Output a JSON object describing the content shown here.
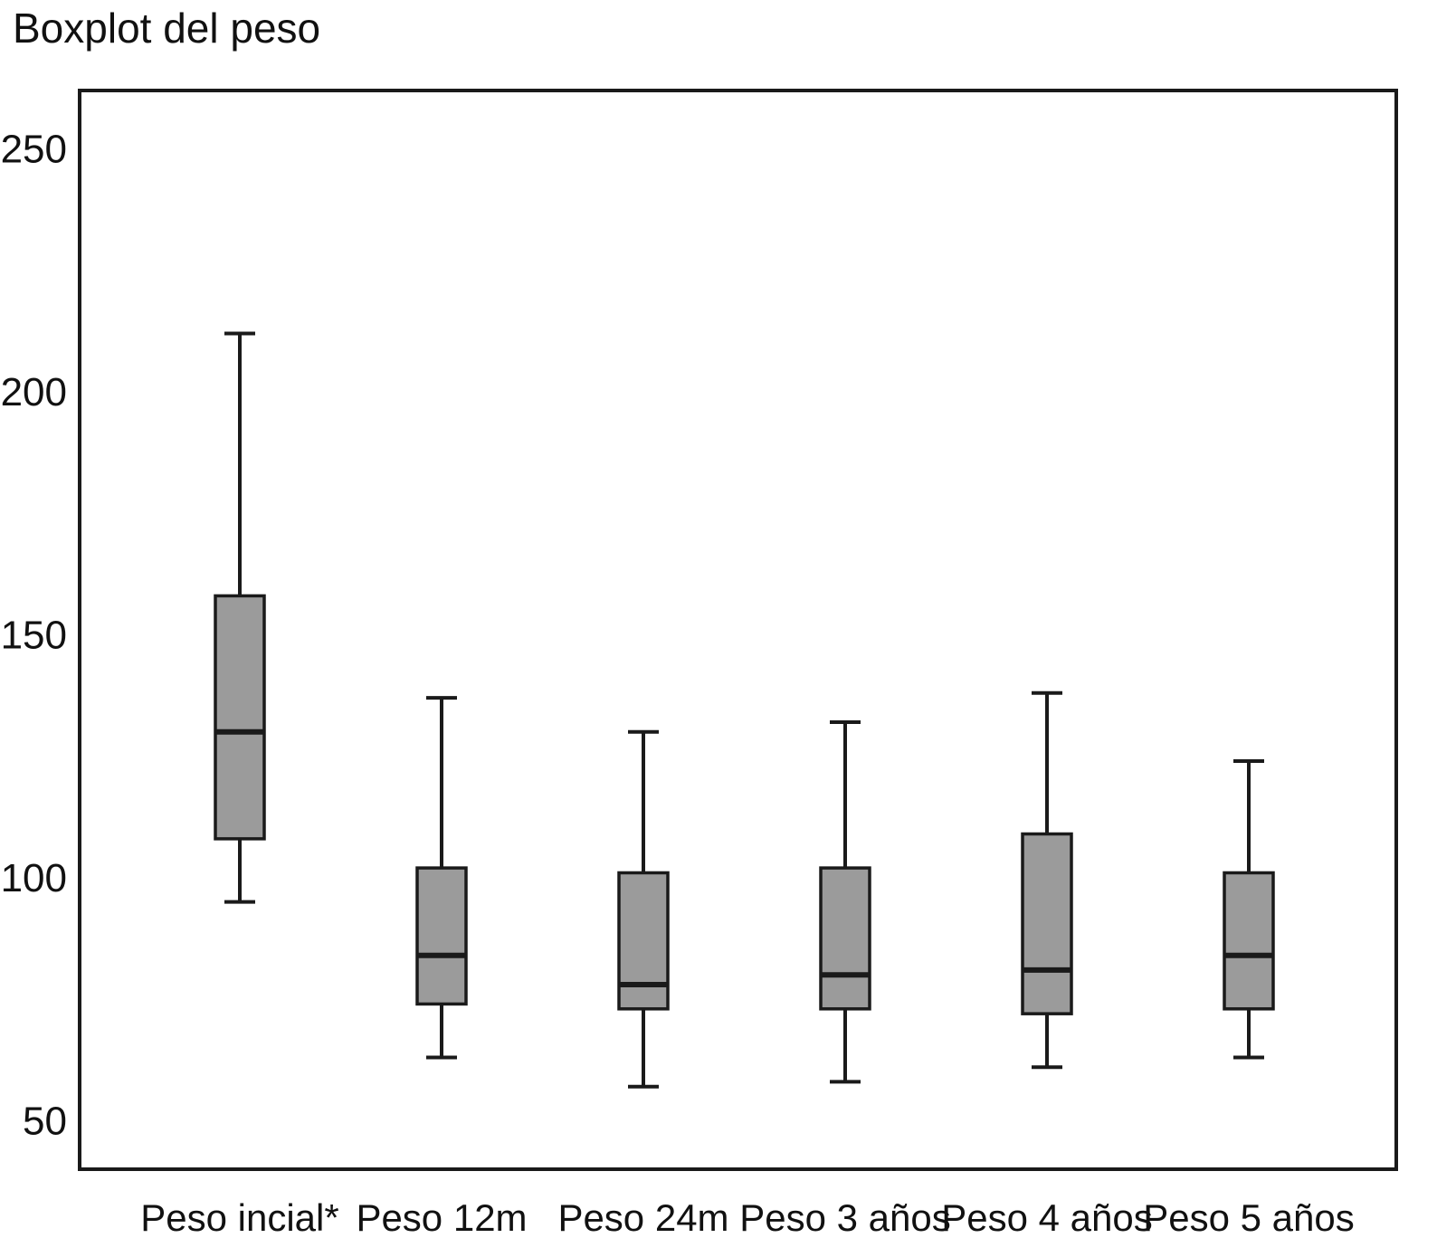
{
  "chart_data": {
    "type": "boxplot",
    "title": "Boxplot del peso",
    "xlabel": "",
    "ylabel": "",
    "ylim": [
      40,
      262
    ],
    "yticks": [
      50,
      100,
      150,
      200,
      250
    ],
    "grid": false,
    "legend": "none",
    "background": "#ffffff",
    "box_fill": "#9b9b9b",
    "stroke": "#1a1a1a",
    "categories": [
      "Peso incial*",
      "Peso 12m",
      "Peso 24m",
      "Peso 3 años",
      "Peso 4 años",
      "Peso 5 años"
    ],
    "series": [
      {
        "name": "Peso incial*",
        "whisker_low": 95,
        "q1": 108,
        "median": 130,
        "q3": 158,
        "whisker_high": 212
      },
      {
        "name": "Peso 12m",
        "whisker_low": 63,
        "q1": 74,
        "median": 84,
        "q3": 102,
        "whisker_high": 137
      },
      {
        "name": "Peso 24m",
        "whisker_low": 57,
        "q1": 73,
        "median": 78,
        "q3": 101,
        "whisker_high": 130
      },
      {
        "name": "Peso 3 años",
        "whisker_low": 58,
        "q1": 73,
        "median": 80,
        "q3": 102,
        "whisker_high": 132
      },
      {
        "name": "Peso 4 años",
        "whisker_low": 61,
        "q1": 72,
        "median": 81,
        "q3": 109,
        "whisker_high": 138
      },
      {
        "name": "Peso 5 años",
        "whisker_low": 63,
        "q1": 73,
        "median": 84,
        "q3": 101,
        "whisker_high": 124
      }
    ]
  }
}
